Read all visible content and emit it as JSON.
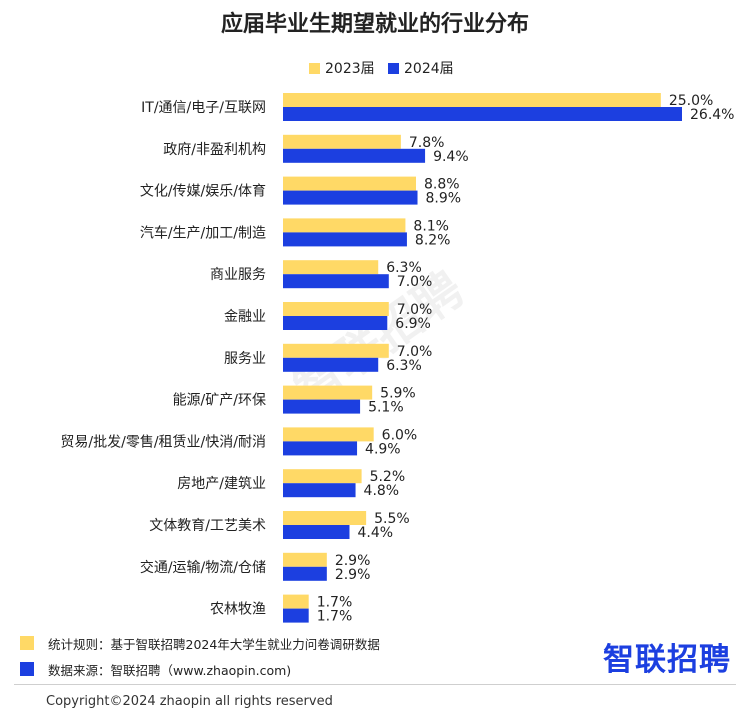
{
  "title": "应届毕业生期望就业的行业分布",
  "legend": {
    "series_2023": "2023届",
    "series_2024": "2024届"
  },
  "colors": {
    "series_2023": "#ffd966",
    "series_2024": "#1c3fe0"
  },
  "chart_data": {
    "type": "bar",
    "orientation": "horizontal",
    "title": "应届毕业生期望就业的行业分布",
    "xlabel": "",
    "ylabel": "",
    "legend_position": "top",
    "grid": false,
    "xlim": [
      0,
      26.4
    ],
    "value_suffix": "%",
    "categories": [
      "IT/通信/电子/互联网",
      "政府/非盈利机构",
      "文化/传媒/娱乐/体育",
      "汽车/生产/加工/制造",
      "商业服务",
      "金融业",
      "服务业",
      "能源/矿产/环保",
      "贸易/批发/零售/租赁业/快消/耐消",
      "房地产/建筑业",
      "文体教育/工艺美术",
      "交通/运输/物流/仓储",
      "农林牧渔"
    ],
    "series": [
      {
        "name": "2023届",
        "values": [
          25.0,
          7.8,
          8.8,
          8.1,
          6.3,
          7.0,
          7.0,
          5.9,
          6.0,
          5.2,
          5.5,
          2.9,
          1.7
        ]
      },
      {
        "name": "2024届",
        "values": [
          26.4,
          9.4,
          8.9,
          8.2,
          7.0,
          6.9,
          6.3,
          5.1,
          4.9,
          4.8,
          4.4,
          2.9,
          1.7
        ]
      }
    ]
  },
  "watermark": "智联招聘",
  "notes": {
    "rule": "统计规则：基于智联招聘2024年大学生就业力问卷调研数据",
    "source": "数据来源：智联招聘（www.zhaopin.com)"
  },
  "brand": "智联招聘",
  "copyright": "Copyright©2024 zhaopin all rights reserved"
}
